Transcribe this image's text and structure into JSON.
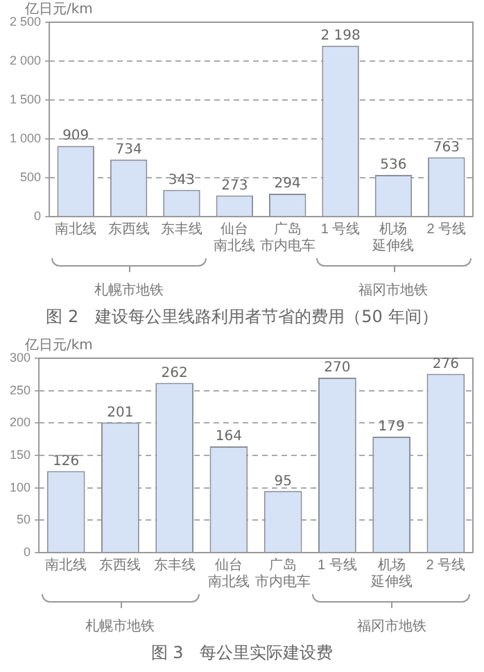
{
  "chart_data": [
    {
      "type": "bar",
      "title": "图 2　建设每公里线路利用者节省的费用（50 年间）",
      "ylabel": "亿日元/km",
      "categories": [
        "南北线",
        "东西线",
        "东丰线",
        "仙台南北线",
        "广岛市内电车",
        "1 号线",
        "机场延伸线",
        "2 号线"
      ],
      "values": [
        909,
        734,
        343,
        273,
        294,
        2198,
        536,
        763
      ],
      "value_labels": [
        "909",
        "734",
        "343",
        "273",
        "294",
        "2 198",
        "536",
        "763"
      ],
      "color": "#d6e2f6",
      "ylim": [
        0,
        2500
      ],
      "yticks": [
        0,
        500,
        {
          "value": 1000,
          "label": "1 000"
        },
        {
          "value": 1500,
          "label": "1 500"
        },
        {
          "value": 2000,
          "label": "2 000"
        },
        {
          "value": 2500,
          "label": "2 500"
        }
      ],
      "grid": "y",
      "annotations": [
        "札幌市地铁",
        "福冈市地铁"
      ]
    },
    {
      "type": "bar",
      "title": "图 3　每公里实际建设费",
      "ylabel": "亿日元/km",
      "categories": [
        "南北线",
        "东西线",
        "东丰线",
        "仙台南北线",
        "广岛市内电车",
        "1 号线",
        "机场延伸线",
        "2 号线"
      ],
      "values": [
        126,
        201,
        262,
        164,
        95,
        270,
        179,
        276
      ],
      "data_labels": true,
      "color": "#d6e2f6",
      "ylim": [
        0,
        300
      ],
      "yticks": [
        0,
        50,
        100,
        150,
        200,
        250,
        300
      ],
      "grid": "y",
      "annotations": [
        "札幌市地铁",
        "福冈市地铁"
      ]
    }
  ]
}
